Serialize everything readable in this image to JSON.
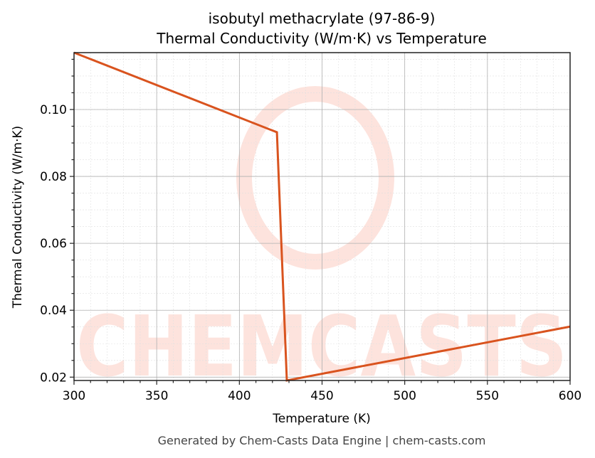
{
  "title_line1": "isobutyl methacrylate (97-86-9)",
  "title_line2": "Thermal Conductivity (W/m·K) vs Temperature",
  "footer": "Generated by Chem-Casts Data Engine | chem-casts.com",
  "watermark": "CHEMCASTS",
  "colors": {
    "line": "#d9531e",
    "watermark": "#fde3dd",
    "grid_major": "#b0b0b0",
    "grid_minor": "#e0e0e0"
  },
  "chart_data": {
    "type": "line",
    "title": "isobutyl methacrylate (97-86-9)\nThermal Conductivity (W/m·K) vs Temperature",
    "xlabel": "Temperature (K)",
    "ylabel": "Thermal Conductivity (W/m·K)",
    "xlim": [
      300,
      600
    ],
    "ylim": [
      0.019,
      0.117
    ],
    "xticks": [
      300,
      350,
      400,
      450,
      500,
      550,
      600
    ],
    "xtick_labels": [
      "300",
      "350",
      "400",
      "450",
      "500",
      "550",
      "600"
    ],
    "yticks": [
      0.02,
      0.04,
      0.06,
      0.08,
      0.1
    ],
    "ytick_labels": [
      "0.02",
      "0.04",
      "0.06",
      "0.08",
      "0.10"
    ],
    "grid": true,
    "legend": null,
    "series": [
      {
        "name": "Thermal Conductivity",
        "x": [
          300,
          422.7,
          428.7,
          600
        ],
        "y": [
          0.117,
          0.0932,
          0.019,
          0.0351
        ]
      }
    ]
  }
}
